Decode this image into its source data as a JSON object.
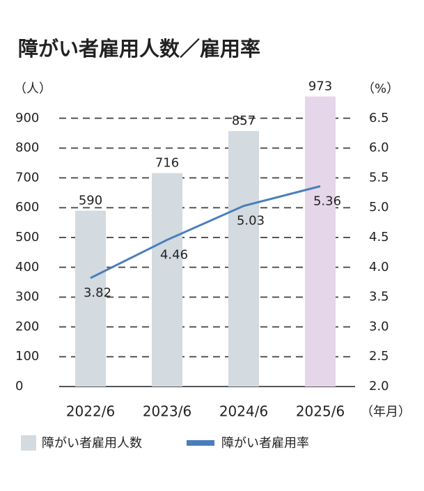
{
  "chart_data": {
    "type": "bar_line",
    "title": "障がい者雇用人数／雇用率",
    "y_unit": "（人）",
    "y2_unit": "（%）",
    "x_unit": "（年月）",
    "categories": [
      "2022/6",
      "2023/6",
      "2024/6",
      "2025/6"
    ],
    "series": [
      {
        "name": "障がい者雇用人数",
        "type": "bar",
        "color": "#d3dae0",
        "colors": [
          "#d3dae0",
          "#d3dae0",
          "#d3dae0",
          "#e6d6ea"
        ],
        "values": [
          590,
          716,
          857,
          973
        ]
      },
      {
        "name": "障がい者雇用率",
        "type": "line",
        "axis": "y2",
        "color": "#4a7ebb",
        "values": [
          3.82,
          4.46,
          5.03,
          5.36
        ]
      }
    ],
    "ylim": [
      0,
      1000
    ],
    "yticks": [
      0,
      100,
      200,
      300,
      400,
      500,
      600,
      700,
      800,
      900
    ],
    "y2lim": [
      2,
      7
    ],
    "y2ticks": [
      {
        "value": 2,
        "label": "2.0"
      },
      2.5,
      {
        "value": 3,
        "label": "3.0"
      },
      3.5,
      {
        "value": 4,
        "label": "4.0"
      },
      4.5,
      {
        "value": 5,
        "label": "5.0"
      },
      5.5,
      {
        "value": 6,
        "label": "6.0"
      },
      6.5
    ],
    "grid": true
  }
}
